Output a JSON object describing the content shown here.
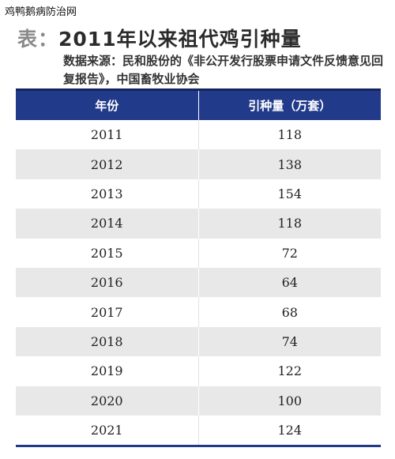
{
  "watermark": "鸡鸭鹅病防治网",
  "title": {
    "prefix": "表：",
    "text": "2011年以来祖代鸡引种量"
  },
  "source": "数据来源：民和股份的《非公开发行股票申请文件反馈意见回复报告》，中国畜牧业协会",
  "table": {
    "headers": [
      "年份",
      "引种量（万套）"
    ],
    "rows": [
      [
        "2011",
        "118"
      ],
      [
        "2012",
        "138"
      ],
      [
        "2013",
        "154"
      ],
      [
        "2014",
        "118"
      ],
      [
        "2015",
        "72"
      ],
      [
        "2016",
        "64"
      ],
      [
        "2017",
        "68"
      ],
      [
        "2018",
        "74"
      ],
      [
        "2019",
        "122"
      ],
      [
        "2020",
        "100"
      ],
      [
        "2021",
        "124"
      ]
    ]
  }
}
